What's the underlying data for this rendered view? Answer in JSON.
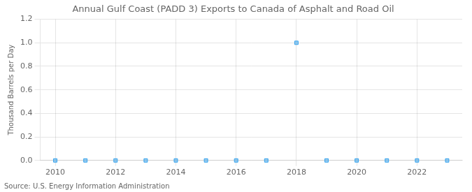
{
  "chart_data": {
    "type": "scatter",
    "title": "Annual Gulf Coast (PADD 3) Exports to Canada of Asphalt and Road Oil",
    "ylabel": "Thousand Barrels per Day",
    "annotations": [
      "Source: U.S. Energy Information Administration"
    ],
    "x": [
      2010,
      2011,
      2012,
      2013,
      2014,
      2015,
      2016,
      2017,
      2018,
      2019,
      2020,
      2021,
      2022,
      2023
    ],
    "values": [
      0.0,
      0.0,
      0.0,
      0.0,
      0.0,
      0.0,
      0.0,
      0.0,
      1.0,
      0.0,
      0.0,
      0.0,
      0.0,
      0.0
    ],
    "xlim": [
      2009.5,
      2023.5
    ],
    "xticks": [
      2010,
      2012,
      2014,
      2016,
      2018,
      2020,
      2022
    ],
    "ylim": [
      0.0,
      1.2
    ],
    "yticks": [
      {
        "value": 0.0,
        "label": "0.0"
      },
      0.2,
      0.4,
      0.6,
      0.8,
      {
        "value": 1.0,
        "label": "1.0"
      },
      1.2
    ],
    "grid": true,
    "marker": "square"
  }
}
